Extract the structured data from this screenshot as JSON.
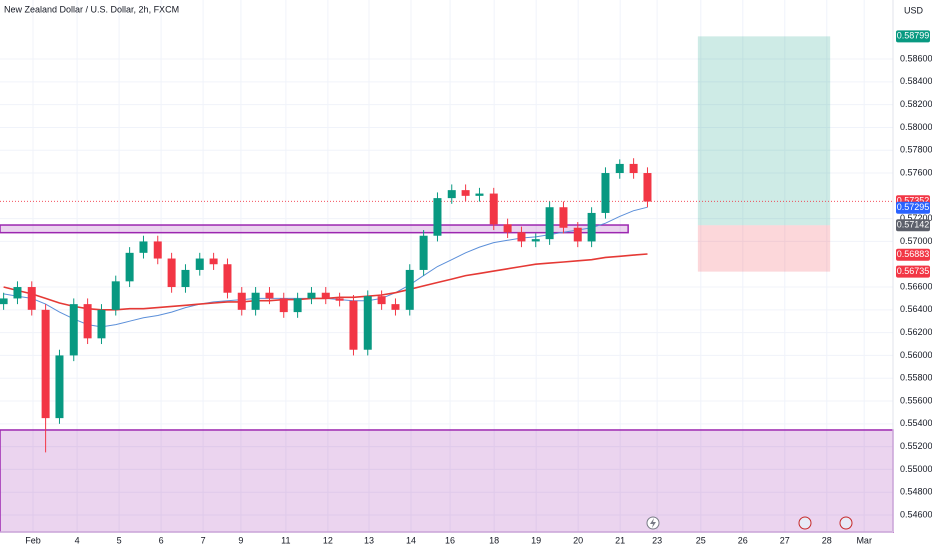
{
  "chart_data": {
    "type": "candlestick",
    "title": "New Zealand Dollar / U.S. Dollar, 2h, FXCM",
    "currency": "USD",
    "up_color": "#089981",
    "down_color": "#f23645",
    "xlim": [
      -0.786,
      20.476
    ],
    "ylim": [
      0.54451,
      0.59118
    ],
    "grid": true,
    "xticks": [
      {
        "value": 0,
        "label": "Feb"
      },
      {
        "value": 1.05,
        "label": "4"
      },
      {
        "value": 2.05,
        "label": "5"
      },
      {
        "value": 3.05,
        "label": "6"
      },
      {
        "value": 4.05,
        "label": "7"
      },
      {
        "value": 4.95,
        "label": "9"
      },
      {
        "value": 6.02,
        "label": "11"
      },
      {
        "value": 7.02,
        "label": "12"
      },
      {
        "value": 8.0,
        "label": "13"
      },
      {
        "value": 9.0,
        "label": "14"
      },
      {
        "value": 9.93,
        "label": "16"
      },
      {
        "value": 10.98,
        "label": "18"
      },
      {
        "value": 11.98,
        "label": "19"
      },
      {
        "value": 12.98,
        "label": "20"
      },
      {
        "value": 13.98,
        "label": "21"
      },
      {
        "value": 14.86,
        "label": "23"
      },
      {
        "value": 15.9,
        "label": "25"
      },
      {
        "value": 16.9,
        "label": "26"
      },
      {
        "value": 17.9,
        "label": "27"
      },
      {
        "value": 18.9,
        "label": "28"
      },
      {
        "value": 19.79,
        "label": "Mar"
      }
    ],
    "yticks": [
      {
        "value": 0.546,
        "label": "0.54600"
      },
      {
        "value": 0.548,
        "label": "0.54800"
      },
      {
        "value": 0.55,
        "label": "0.55000"
      },
      {
        "value": 0.552,
        "label": "0.55200"
      },
      {
        "value": 0.554,
        "label": "0.55400"
      },
      {
        "value": 0.556,
        "label": "0.55600"
      },
      {
        "value": 0.558,
        "label": "0.55800"
      },
      {
        "value": 0.56,
        "label": "0.56000"
      },
      {
        "value": 0.562,
        "label": "0.56200"
      },
      {
        "value": 0.564,
        "label": "0.56400"
      },
      {
        "value": 0.566,
        "label": "0.56600"
      },
      {
        "value": 0.57,
        "label": "0.57000"
      },
      {
        "value": 0.572,
        "label": "0.57200"
      },
      {
        "value": 0.576,
        "label": "0.57600"
      },
      {
        "value": 0.578,
        "label": "0.57800"
      },
      {
        "value": 0.58,
        "label": "0.58000"
      },
      {
        "value": 0.582,
        "label": "0.58200"
      },
      {
        "value": 0.584,
        "label": "0.58400"
      },
      {
        "value": 0.586,
        "label": "0.58600"
      }
    ],
    "x": [
      -0.7,
      -0.37,
      -0.03,
      0.3,
      0.63,
      0.97,
      1.3,
      1.63,
      1.97,
      2.3,
      2.63,
      2.97,
      3.3,
      3.63,
      3.97,
      4.3,
      4.63,
      4.97,
      5.3,
      5.63,
      5.97,
      6.3,
      6.63,
      6.97,
      7.3,
      7.63,
      7.97,
      8.3,
      8.63,
      8.97,
      9.3,
      9.63,
      9.97,
      10.3,
      10.63,
      10.97,
      11.3,
      11.63,
      11.97,
      12.3,
      12.63,
      12.97,
      13.3,
      13.63,
      13.97,
      14.3,
      14.63
    ],
    "open": [
      0.5645,
      0.565,
      0.566,
      0.564,
      0.5545,
      0.56,
      0.5645,
      0.5615,
      0.564,
      0.5665,
      0.569,
      0.57,
      0.5685,
      0.566,
      0.5675,
      0.5685,
      0.568,
      0.5655,
      0.564,
      0.5655,
      0.565,
      0.5638,
      0.565,
      0.5655,
      0.565,
      0.5648,
      0.5605,
      0.5652,
      0.5645,
      0.564,
      0.5675,
      0.5705,
      0.5738,
      0.5745,
      0.574,
      0.5742,
      0.5715,
      0.5708,
      0.57,
      0.5702,
      0.573,
      0.5712,
      0.57,
      0.5725,
      0.576,
      0.5768,
      0.576
    ],
    "high": [
      0.5655,
      0.5665,
      0.5665,
      0.5645,
      0.5605,
      0.565,
      0.565,
      0.5645,
      0.567,
      0.5695,
      0.5705,
      0.5705,
      0.569,
      0.568,
      0.569,
      0.569,
      0.5685,
      0.566,
      0.566,
      0.566,
      0.5655,
      0.5655,
      0.566,
      0.566,
      0.5655,
      0.5653,
      0.5657,
      0.5657,
      0.565,
      0.568,
      0.571,
      0.5743,
      0.575,
      0.575,
      0.5747,
      0.5747,
      0.572,
      0.5713,
      0.5707,
      0.5735,
      0.5735,
      0.5717,
      0.573,
      0.5765,
      0.5772,
      0.5773,
      0.5765
    ],
    "low": [
      0.564,
      0.5645,
      0.5635,
      0.5515,
      0.554,
      0.5595,
      0.561,
      0.561,
      0.5635,
      0.566,
      0.5685,
      0.568,
      0.5655,
      0.5655,
      0.567,
      0.5675,
      0.565,
      0.5635,
      0.5635,
      0.5645,
      0.5633,
      0.5633,
      0.5645,
      0.5645,
      0.5643,
      0.56,
      0.56,
      0.564,
      0.5635,
      0.5635,
      0.567,
      0.57,
      0.5733,
      0.5735,
      0.5735,
      0.571,
      0.5703,
      0.5695,
      0.5695,
      0.5697,
      0.5707,
      0.5695,
      0.5695,
      0.572,
      0.5755,
      0.5755,
      0.573
    ],
    "close": [
      0.565,
      0.566,
      0.564,
      0.5545,
      0.56,
      0.5645,
      0.5615,
      0.564,
      0.5665,
      0.569,
      0.57,
      0.5685,
      0.566,
      0.5675,
      0.5685,
      0.568,
      0.5655,
      0.564,
      0.5655,
      0.565,
      0.5638,
      0.565,
      0.5655,
      0.565,
      0.5648,
      0.5605,
      0.5652,
      0.5645,
      0.564,
      0.5675,
      0.5705,
      0.5738,
      0.5745,
      0.574,
      0.5742,
      0.5715,
      0.5708,
      0.57,
      0.5702,
      0.573,
      0.5712,
      0.57,
      0.5725,
      0.576,
      0.5768,
      0.576,
      0.5735
    ],
    "lines": [
      {
        "color": "#5b8fd9",
        "values": [
          0.5654,
          0.5652,
          0.565,
          0.5645,
          0.5638,
          0.5632,
          0.5627,
          0.5625,
          0.5627,
          0.563,
          0.5633,
          0.5635,
          0.5638,
          0.5642,
          0.5645,
          0.5647,
          0.5648,
          0.5649,
          0.565,
          0.565,
          0.565,
          0.565,
          0.565,
          0.565,
          0.5649,
          0.5648,
          0.5648,
          0.565,
          0.5655,
          0.5662,
          0.567,
          0.5678,
          0.5684,
          0.569,
          0.5695,
          0.5699,
          0.5701,
          0.5703,
          0.5704,
          0.5706,
          0.5708,
          0.571,
          0.5712,
          0.5716,
          0.5722,
          0.5727,
          0.573
        ]
      },
      {
        "color": "#e53935",
        "values": [
          0.566,
          0.5657,
          0.5654,
          0.565,
          0.5646,
          0.5643,
          0.5641,
          0.564,
          0.564,
          0.5641,
          0.5641,
          0.5642,
          0.5643,
          0.5644,
          0.5645,
          0.5646,
          0.5647,
          0.5647,
          0.5648,
          0.5648,
          0.5649,
          0.5649,
          0.565,
          0.565,
          0.5651,
          0.5651,
          0.5652,
          0.5653,
          0.5655,
          0.5658,
          0.5661,
          0.5664,
          0.5667,
          0.567,
          0.5672,
          0.5674,
          0.5676,
          0.5678,
          0.568,
          0.5681,
          0.5682,
          0.5683,
          0.5684,
          0.5686,
          0.5687,
          0.5688,
          0.5689
        ]
      }
    ],
    "zones": [
      {
        "x_end": 14.17,
        "top": 0.57144,
        "bottom": 0.57077,
        "color": "#9c27b0"
      },
      {
        "top": 0.55346,
        "color": "#9c27b0"
      }
    ],
    "position": {
      "x": [
        15.83,
        18.98
      ],
      "entry": 0.57142,
      "target": 0.58799,
      "stop": 0.56735
    },
    "price_labels": [
      {
        "value": 0.58799,
        "color": "#089981"
      },
      {
        "value": 0.57352,
        "color": "#f23645"
      },
      {
        "value": 0.57295,
        "color": "#2962ff"
      },
      {
        "value": 0.57142,
        "color": "#5d606b"
      },
      {
        "value": 0.56883,
        "color": "#f23645"
      },
      {
        "value": 0.56735,
        "color": "#f23645"
      }
    ]
  }
}
